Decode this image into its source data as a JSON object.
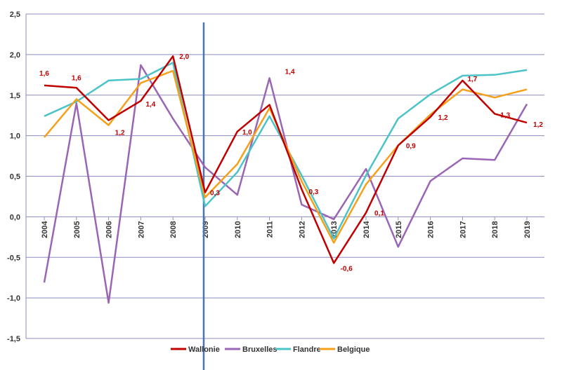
{
  "chart_data": {
    "type": "line",
    "categories": [
      "2004",
      "2005",
      "2006",
      "2007",
      "2008",
      "2009",
      "2010",
      "2011",
      "2012",
      "2013",
      "2014",
      "2015",
      "2016",
      "2017",
      "2018",
      "2019"
    ],
    "ylim": [
      -1.5,
      2.5
    ],
    "yticks": [
      -1.5,
      -1.0,
      -0.5,
      0.0,
      0.5,
      1.0,
      1.5,
      2.0,
      2.5
    ],
    "ytick_labels": [
      "-1,5",
      "-1,0",
      "-0,5",
      "0,0",
      "0,5",
      "1,0",
      "1,5",
      "2,0",
      "2,5"
    ],
    "grid": true,
    "legend_position": "bottom",
    "vertical_marker_category": "2009",
    "colors": {
      "Wallonie": "#c00000",
      "Bruxelles": "#9b65b5",
      "Flandre": "#4bc4c8",
      "Belgique": "#f5a01a",
      "marker": "#4a74b8",
      "label": "#c00000"
    },
    "series": [
      {
        "name": "Wallonie",
        "values": [
          1.62,
          1.59,
          1.19,
          1.43,
          1.98,
          0.3,
          1.05,
          1.38,
          0.34,
          -0.57,
          0.05,
          0.88,
          1.23,
          1.68,
          1.27,
          1.16
        ]
      },
      {
        "name": "Bruxelles",
        "values": [
          -0.81,
          1.4,
          -1.06,
          1.87,
          1.21,
          0.61,
          0.27,
          1.71,
          0.15,
          -0.03,
          0.59,
          -0.37,
          0.44,
          0.72,
          0.7,
          1.39
        ]
      },
      {
        "name": "Flandre",
        "values": [
          1.24,
          1.42,
          1.68,
          1.7,
          1.9,
          0.13,
          0.55,
          1.24,
          0.51,
          -0.27,
          0.51,
          1.21,
          1.51,
          1.74,
          1.75,
          1.81
        ]
      },
      {
        "name": "Belgique",
        "values": [
          0.98,
          1.45,
          1.13,
          1.65,
          1.8,
          0.24,
          0.65,
          1.34,
          0.44,
          -0.32,
          0.4,
          0.88,
          1.26,
          1.57,
          1.47,
          1.57
        ]
      }
    ],
    "data_labels": [
      {
        "category": "2004",
        "value": 1.62,
        "text": "1,6"
      },
      {
        "category": "2005",
        "value": 1.59,
        "text": "1,6"
      },
      {
        "category": "2006",
        "value": 1.19,
        "text": "1,2"
      },
      {
        "category": "2007",
        "value": 1.43,
        "text": "1,4"
      },
      {
        "category": "2008",
        "value": 1.98,
        "text": "2,0"
      },
      {
        "category": "2009",
        "value": 0.3,
        "text": "0,3"
      },
      {
        "category": "2010",
        "value": 1.05,
        "text": "1,0"
      },
      {
        "category": "2011",
        "value": 1.38,
        "text": "1,4"
      },
      {
        "category": "2012",
        "value": 0.34,
        "text": "0,3"
      },
      {
        "category": "2013",
        "value": -0.57,
        "text": "-0,6"
      },
      {
        "category": "2014",
        "value": 0.05,
        "text": "0,1"
      },
      {
        "category": "2015",
        "value": 0.88,
        "text": "0,9"
      },
      {
        "category": "2016",
        "value": 1.23,
        "text": "1,2"
      },
      {
        "category": "2017",
        "value": 1.68,
        "text": "1,7"
      },
      {
        "category": "2018",
        "value": 1.27,
        "text": "1,3"
      },
      {
        "category": "2019",
        "value": 1.16,
        "text": "1,2"
      }
    ]
  }
}
